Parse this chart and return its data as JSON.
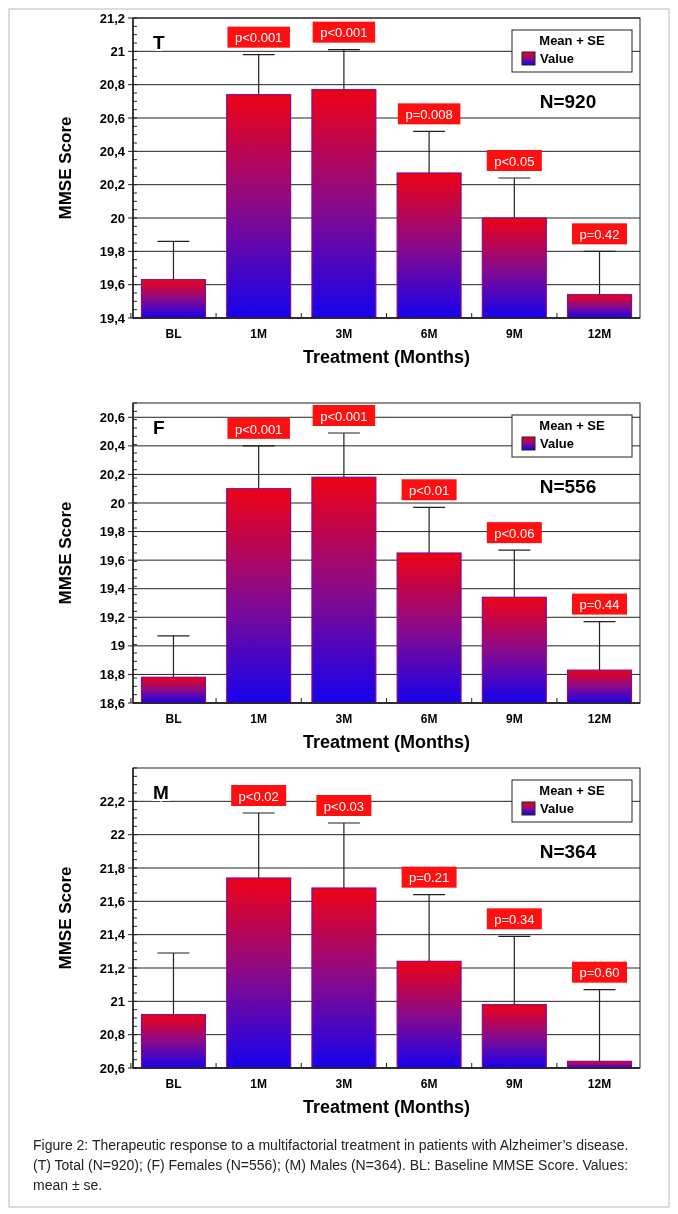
{
  "chart_data": [
    {
      "type": "bar",
      "xlabel": "Treatment (Months)",
      "ylabel": "MMSE Score",
      "legend_title": "Mean + SE",
      "legend": "top right",
      "grid": "y",
      "categories": [
        "BL",
        "1M",
        "3M",
        "6M",
        "9M",
        "12M"
      ],
      "series": [
        {
          "name": "Value",
          "color": "#8a0a8a",
          "values": [
            19.63,
            20.74,
            20.77,
            20.27,
            20.0,
            19.54
          ],
          "errors": [
            [
              19.63,
              19.86
            ],
            [
              20.74,
              20.98
            ],
            [
              20.77,
              21.01
            ],
            [
              20.27,
              20.52
            ],
            [
              20.0,
              20.24
            ],
            [
              19.54,
              19.8
            ]
          ]
        }
      ],
      "ylim": [
        19.4,
        21.2
      ],
      "yticks": [
        {
          "value": 19.4,
          "label": "19,4"
        },
        {
          "value": 19.6,
          "label": "19,6"
        },
        {
          "value": 19.8,
          "label": "19,8"
        },
        20,
        {
          "value": 20.2,
          "label": "20,2"
        },
        {
          "value": 20.4,
          "label": "20,4"
        },
        {
          "value": 20.6,
          "label": "20,6"
        },
        {
          "value": 20.8,
          "label": "20,8"
        },
        21,
        {
          "value": 21.2,
          "label": "21,2"
        }
      ],
      "annotations": [
        "T",
        "N=920",
        {
          "text": "p<0.001",
          "x": "1M",
          "y": 20.98
        },
        {
          "text": "p<0.001",
          "x": "3M",
          "y": 21.01
        },
        {
          "text": "p=0.008",
          "x": "6M",
          "y": 20.52
        },
        {
          "text": "p<0.05",
          "x": "9M",
          "y": 20.24
        },
        {
          "text": "p=0.42",
          "x": "12M",
          "y": 19.8
        }
      ]
    },
    {
      "type": "bar",
      "xlabel": "Treatment (Months)",
      "ylabel": "MMSE Score",
      "legend_title": "Mean + SE",
      "legend": "top right",
      "grid": "y",
      "categories": [
        "BL",
        "1M",
        "3M",
        "6M",
        "9M",
        "12M"
      ],
      "series": [
        {
          "name": "Value",
          "color": "#8a0a8a",
          "values": [
            18.78,
            20.1,
            20.18,
            19.65,
            19.34,
            18.83
          ],
          "errors": [
            [
              18.78,
              19.07
            ],
            [
              20.1,
              20.4
            ],
            [
              20.18,
              20.49
            ],
            [
              19.65,
              19.97
            ],
            [
              19.34,
              19.67
            ],
            [
              18.83,
              19.17
            ]
          ]
        }
      ],
      "ylim": [
        18.6,
        20.7
      ],
      "yticks": [
        {
          "value": 18.6,
          "label": "18,6"
        },
        {
          "value": 18.8,
          "label": "18,8"
        },
        19,
        {
          "value": 19.2,
          "label": "19,2"
        },
        {
          "value": 19.4,
          "label": "19,4"
        },
        {
          "value": 19.6,
          "label": "19,6"
        },
        {
          "value": 19.8,
          "label": "19,8"
        },
        20,
        {
          "value": 20.2,
          "label": "20,2"
        },
        {
          "value": 20.4,
          "label": "20,4"
        },
        {
          "value": 20.6,
          "label": "20,6"
        }
      ],
      "annotations": [
        "F",
        "N=556",
        {
          "text": "p<0.001",
          "x": "1M",
          "y": 20.4
        },
        {
          "text": "p<0.001",
          "x": "3M",
          "y": 20.49
        },
        {
          "text": "p<0.01",
          "x": "6M",
          "y": 19.97
        },
        {
          "text": "p<0.06",
          "x": "9M",
          "y": 19.67
        },
        {
          "text": "p=0.44",
          "x": "12M",
          "y": 19.17
        }
      ]
    },
    {
      "type": "bar",
      "xlabel": "Treatment (Months)",
      "ylabel": "MMSE Score",
      "legend_title": "Mean + SE",
      "legend": "top right",
      "grid": "y",
      "categories": [
        "BL",
        "1M",
        "3M",
        "6M",
        "9M",
        "12M"
      ],
      "series": [
        {
          "name": "Value",
          "color": "#8a0a8a",
          "values": [
            20.92,
            21.74,
            21.68,
            21.24,
            20.98,
            20.64
          ],
          "errors": [
            [
              20.92,
              21.29
            ],
            [
              21.74,
              22.13
            ],
            [
              21.68,
              22.07
            ],
            [
              21.24,
              21.64
            ],
            [
              20.98,
              21.39
            ],
            [
              20.64,
              21.07
            ]
          ]
        }
      ],
      "ylim": [
        20.6,
        22.4
      ],
      "yticks": [
        {
          "value": 20.6,
          "label": "20,6"
        },
        {
          "value": 20.8,
          "label": "20,8"
        },
        21,
        {
          "value": 21.2,
          "label": "21,2"
        },
        {
          "value": 21.4,
          "label": "21,4"
        },
        {
          "value": 21.6,
          "label": "21,6"
        },
        {
          "value": 21.8,
          "label": "21,8"
        },
        22,
        {
          "value": 22.2,
          "label": "22,2"
        }
      ],
      "annotations": [
        "M",
        "N=364",
        {
          "text": "p<0.02",
          "x": "1M",
          "y": 22.13
        },
        {
          "text": "p<0.03",
          "x": "3M",
          "y": 22.07
        },
        {
          "text": "p=0.21",
          "x": "6M",
          "y": 21.64
        },
        {
          "text": "p=0.34",
          "x": "9M",
          "y": 21.39
        },
        {
          "text": "p=0.60",
          "x": "12M",
          "y": 21.07
        },
        "Figure 2: Therapeutic response to a multifactorial treatment in patients with Alzheimer’s disease. (T) Total (N=920); (F) Females (N=556); (M) Males (N=364). BL: Baseline MMSE Score. Values: mean ± se."
      ]
    }
  ]
}
